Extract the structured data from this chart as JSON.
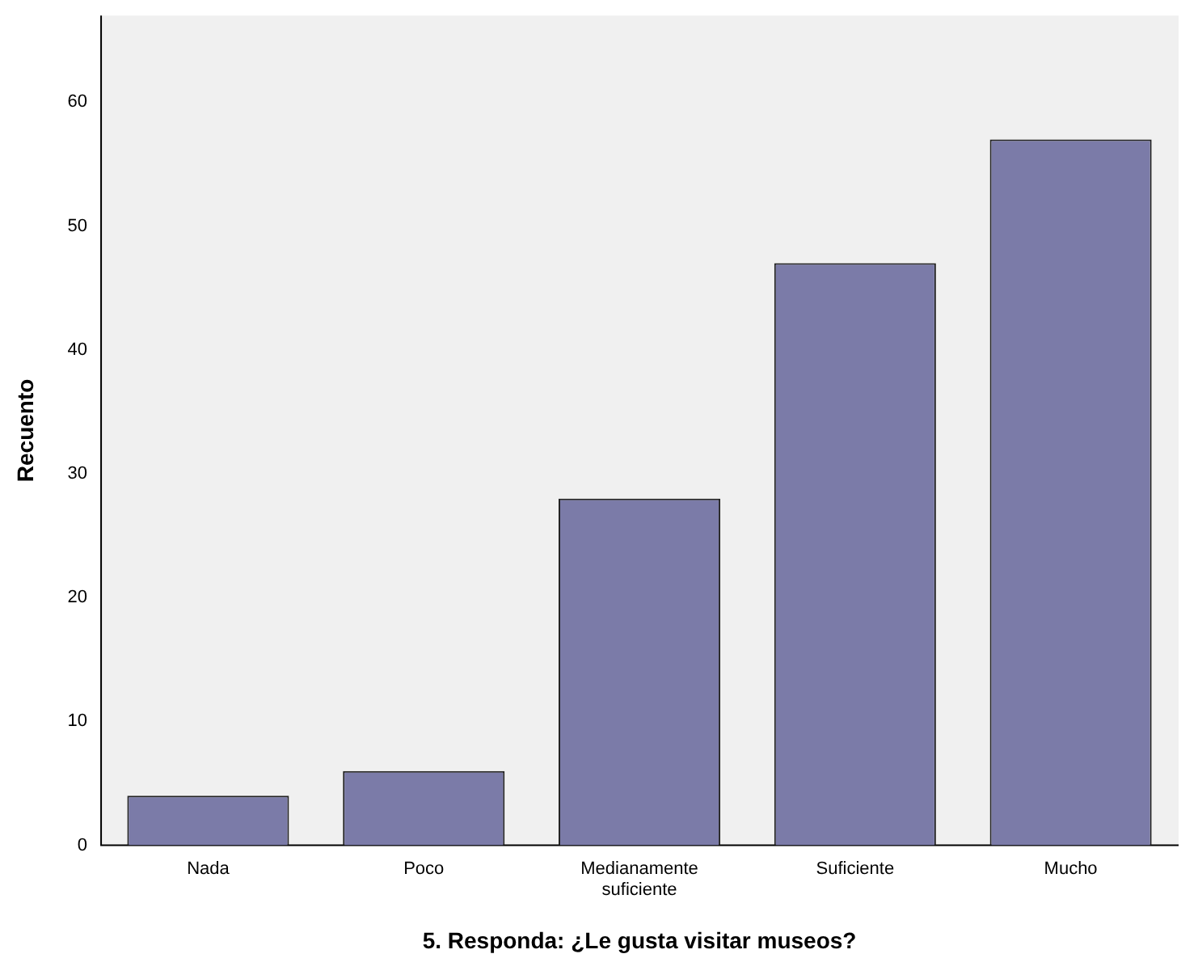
{
  "chart_data": {
    "type": "bar",
    "xlabel": "5. Responda: ¿Le gusta visitar museos?",
    "ylabel": "Recuento",
    "categories": [
      "Nada",
      "Poco",
      "Medianamente suficiente",
      "Suficiente",
      "Mucho"
    ],
    "values": [
      4,
      6,
      28,
      47,
      57
    ],
    "color": "#7b7ba8",
    "ylim": [
      0,
      67
    ],
    "yticks": [
      0,
      10,
      20,
      30,
      40,
      50,
      60
    ],
    "grid": false,
    "legend": false
  }
}
